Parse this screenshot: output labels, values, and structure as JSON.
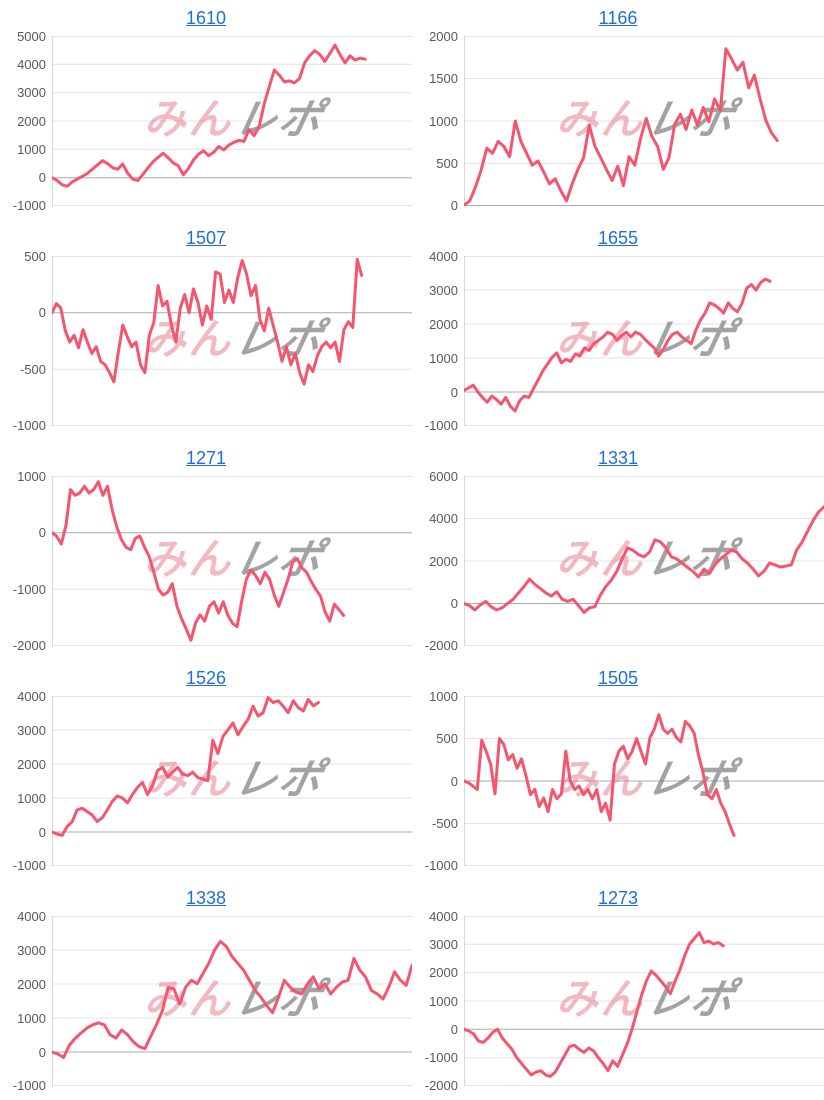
{
  "watermark": {
    "pink_text": "みん",
    "gray_text": "レポ"
  },
  "colors": {
    "line": "#f4566f",
    "title_link": "#1f6fd6",
    "grid": "#e3e3e3",
    "zero_line": "#ababab",
    "axis_border": "#d9d9d9",
    "tick_text": "#595959"
  },
  "chart_data": [
    {
      "type": "line",
      "title": "1610",
      "xlabel": "",
      "ylabel": "",
      "ylim": [
        -1000,
        5000
      ],
      "yticks": [
        5000,
        4000,
        3000,
        2000,
        1000,
        0,
        -1000
      ],
      "grid": true,
      "legend": "none",
      "x_end": 0.87,
      "values": [
        0,
        -100,
        -250,
        -300,
        -150,
        -50,
        50,
        150,
        300,
        450,
        600,
        500,
        350,
        300,
        480,
        150,
        -50,
        -100,
        120,
        350,
        560,
        720,
        860,
        700,
        520,
        420,
        100,
        320,
        620,
        830,
        950,
        780,
        900,
        1100,
        980,
        1150,
        1250,
        1320,
        1280,
        1700,
        1480,
        1800,
        2600,
        3200,
        3800,
        3620,
        3380,
        3420,
        3350,
        3500,
        4050,
        4300,
        4480,
        4350,
        4100,
        4380,
        4680,
        4350,
        4050,
        4300,
        4150,
        4220,
        4180
      ]
    },
    {
      "type": "line",
      "title": "1166",
      "xlabel": "",
      "ylabel": "",
      "ylim": [
        0,
        2000
      ],
      "yticks": [
        2000,
        1500,
        1000,
        500,
        0
      ],
      "grid": true,
      "legend": "none",
      "x_end": 0.87,
      "values": [
        10,
        60,
        220,
        420,
        680,
        620,
        760,
        700,
        580,
        1000,
        760,
        620,
        480,
        530,
        400,
        260,
        320,
        180,
        60,
        260,
        430,
        570,
        950,
        700,
        570,
        430,
        300,
        470,
        240,
        580,
        480,
        790,
        1030,
        820,
        700,
        430,
        570,
        960,
        1080,
        900,
        1130,
        950,
        1160,
        990,
        1260,
        1120,
        1850,
        1730,
        1600,
        1690,
        1390,
        1540,
        1260,
        1010,
        860,
        770
      ]
    },
    {
      "type": "line",
      "title": "1507",
      "xlabel": "",
      "ylabel": "",
      "ylim": [
        -1000,
        500
      ],
      "yticks": [
        500,
        0,
        -500,
        -1000
      ],
      "grid": true,
      "legend": "none",
      "x_end": 0.86,
      "values": [
        0,
        80,
        40,
        -160,
        -260,
        -200,
        -310,
        -150,
        -260,
        -360,
        -300,
        -430,
        -460,
        -530,
        -610,
        -350,
        -110,
        -210,
        -300,
        -260,
        -460,
        -530,
        -200,
        -90,
        240,
        60,
        100,
        -110,
        -260,
        40,
        160,
        0,
        210,
        90,
        -110,
        60,
        -60,
        360,
        340,
        90,
        200,
        90,
        310,
        460,
        340,
        150,
        240,
        -60,
        -160,
        40,
        -110,
        -260,
        -430,
        -300,
        -460,
        -360,
        -530,
        -630,
        -460,
        -520,
        -380,
        -300,
        -260,
        -310,
        -260,
        -430,
        -150,
        -80,
        -130,
        470,
        330
      ]
    },
    {
      "type": "line",
      "title": "1655",
      "xlabel": "",
      "ylabel": "",
      "ylim": [
        -1000,
        4000
      ],
      "yticks": [
        4000,
        3000,
        2000,
        1000,
        0,
        -1000
      ],
      "grid": true,
      "legend": "none",
      "x_end": 0.85,
      "values": [
        50,
        120,
        200,
        0,
        -160,
        -300,
        -120,
        -220,
        -360,
        -160,
        -420,
        -560,
        -260,
        -120,
        -160,
        100,
        360,
        620,
        820,
        1020,
        1150,
        860,
        960,
        900,
        1120,
        1060,
        1300,
        1220,
        1420,
        1520,
        1620,
        1760,
        1700,
        1520,
        1660,
        1760,
        1620,
        1760,
        1700,
        1560,
        1420,
        1300,
        1060,
        1260,
        1520,
        1700,
        1760,
        1620,
        1520,
        1420,
        1820,
        2120,
        2320,
        2620,
        2560,
        2460,
        2320,
        2620,
        2460,
        2360,
        2620,
        3060,
        3160,
        3000,
        3220,
        3320,
        3260
      ]
    },
    {
      "type": "line",
      "title": "1271",
      "xlabel": "",
      "ylabel": "",
      "ylim": [
        -2000,
        1000
      ],
      "yticks": [
        1000,
        0,
        -1000,
        -2000
      ],
      "grid": true,
      "legend": "none",
      "x_end": 0.81,
      "values": [
        0,
        -60,
        -200,
        120,
        760,
        660,
        700,
        820,
        700,
        760,
        900,
        660,
        820,
        400,
        100,
        -120,
        -260,
        -300,
        -100,
        -60,
        -260,
        -420,
        -700,
        -1000,
        -1100,
        -1050,
        -900,
        -1300,
        -1520,
        -1700,
        -1900,
        -1600,
        -1450,
        -1560,
        -1300,
        -1220,
        -1420,
        -1220,
        -1460,
        -1600,
        -1660,
        -1200,
        -820,
        -660,
        -760,
        -900,
        -700,
        -820,
        -1100,
        -1300,
        -1060,
        -820,
        -520,
        -460,
        -620,
        -700,
        -860,
        -1000,
        -1120,
        -1400,
        -1560,
        -1260,
        -1360,
        -1460
      ]
    },
    {
      "type": "line",
      "title": "1331",
      "xlabel": "",
      "ylabel": "",
      "ylim": [
        -2000,
        6000
      ],
      "yticks": [
        6000,
        4000,
        2000,
        0,
        -2000
      ],
      "grid": true,
      "legend": "none",
      "x_end": 1.0,
      "values": [
        0,
        -100,
        -300,
        -60,
        100,
        -160,
        -300,
        -200,
        0,
        200,
        500,
        800,
        1150,
        900,
        700,
        500,
        350,
        550,
        200,
        100,
        200,
        -100,
        -420,
        -200,
        -150,
        400,
        800,
        1100,
        1500,
        2100,
        2620,
        2500,
        2300,
        2200,
        2420,
        3000,
        2900,
        2620,
        2200,
        2100,
        1900,
        1700,
        1500,
        1250,
        1620,
        1420,
        1820,
        2100,
        2300,
        2520,
        2420,
        2100,
        1900,
        1620,
        1300,
        1520,
        1900,
        1820,
        1720,
        1760,
        1820,
        2520,
        2900,
        3400,
        3900,
        4300,
        4550
      ]
    },
    {
      "type": "line",
      "title": "1526",
      "xlabel": "",
      "ylabel": "",
      "ylim": [
        -1000,
        4000
      ],
      "yticks": [
        4000,
        3000,
        2000,
        1000,
        0,
        -1000
      ],
      "grid": true,
      "legend": "none",
      "x_end": 0.74,
      "values": [
        0,
        -60,
        -100,
        160,
        300,
        650,
        700,
        600,
        500,
        310,
        420,
        650,
        900,
        1060,
        1000,
        860,
        1100,
        1310,
        1460,
        1100,
        1360,
        1810,
        1900,
        1620,
        1760,
        1900,
        1700,
        1660,
        1760,
        1600,
        1560,
        1510,
        2700,
        2310,
        2810,
        3000,
        3210,
        2860,
        3100,
        3310,
        3700,
        3410,
        3510,
        3950,
        3810,
        3860,
        3700,
        3510,
        3860,
        3660,
        3560,
        3900,
        3710,
        3810
      ]
    },
    {
      "type": "line",
      "title": "1505",
      "xlabel": "",
      "ylabel": "",
      "ylim": [
        -1000,
        1000
      ],
      "yticks": [
        1000,
        500,
        0,
        -500,
        -1000
      ],
      "grid": true,
      "legend": "none",
      "x_end": 0.75,
      "values": [
        0,
        -20,
        -60,
        -100,
        480,
        350,
        200,
        -150,
        500,
        430,
        250,
        310,
        150,
        260,
        60,
        -160,
        -100,
        -300,
        -200,
        -360,
        -100,
        -210,
        -150,
        350,
        0,
        -100,
        -60,
        -160,
        -100,
        -210,
        -100,
        -360,
        -260,
        -460,
        200,
        350,
        410,
        260,
        350,
        500,
        350,
        200,
        510,
        610,
        780,
        610,
        560,
        610,
        510,
        460,
        700,
        650,
        560,
        300,
        100,
        -160,
        -210,
        -100,
        -260,
        -360,
        -510,
        -640
      ]
    },
    {
      "type": "line",
      "title": "1338",
      "xlabel": "",
      "ylabel": "",
      "ylim": [
        -1000,
        4000
      ],
      "yticks": [
        4000,
        3000,
        2000,
        1000,
        0,
        -1000
      ],
      "grid": true,
      "legend": "none",
      "x_end": 1.0,
      "values": [
        0,
        -60,
        -160,
        200,
        400,
        560,
        700,
        800,
        860,
        800,
        510,
        410,
        650,
        510,
        300,
        160,
        100,
        460,
        810,
        1210,
        1900,
        1860,
        1410,
        1900,
        2110,
        2010,
        2310,
        2610,
        3000,
        3250,
        3110,
        2810,
        2610,
        2410,
        2110,
        1810,
        1610,
        1360,
        1160,
        1610,
        2110,
        1910,
        1760,
        1710,
        2010,
        2210,
        1860,
        2010,
        1710,
        1910,
        2060,
        2110,
        2750,
        2410,
        2210,
        1810,
        1710,
        1560,
        1910,
        2360,
        2110,
        1960,
        2550
      ]
    },
    {
      "type": "line",
      "title": "1273",
      "xlabel": "",
      "ylabel": "",
      "ylim": [
        -2000,
        4000
      ],
      "yticks": [
        4000,
        3000,
        2000,
        1000,
        0,
        -1000,
        -2000
      ],
      "grid": true,
      "legend": "none",
      "x_end": 0.72,
      "values": [
        0,
        -60,
        -160,
        -410,
        -460,
        -310,
        -100,
        0,
        -310,
        -510,
        -710,
        -1000,
        -1210,
        -1410,
        -1610,
        -1510,
        -1460,
        -1610,
        -1660,
        -1510,
        -1210,
        -910,
        -610,
        -560,
        -710,
        -810,
        -660,
        -760,
        -1000,
        -1210,
        -1460,
        -1110,
        -1310,
        -910,
        -510,
        0,
        610,
        1210,
        1710,
        2060,
        1910,
        1710,
        1510,
        1260,
        1710,
        2110,
        2610,
        3010,
        3210,
        3410,
        3060,
        3110,
        3010,
        3060,
        2950
      ]
    }
  ]
}
